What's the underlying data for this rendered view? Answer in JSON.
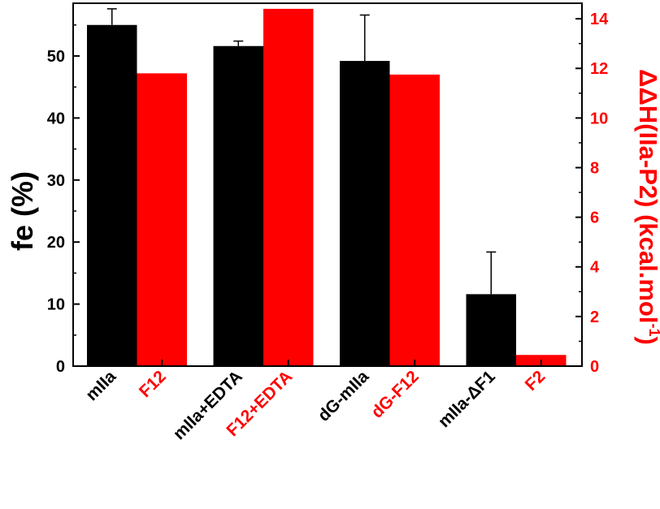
{
  "chart_data": {
    "type": "bar",
    "categories": [
      {
        "black_label": "mIIa",
        "red_label": "F12"
      },
      {
        "black_label": "mIIa+EDTA",
        "red_label": "F12+EDTA"
      },
      {
        "black_label": "dG-mIIa",
        "red_label": "dG-F12"
      },
      {
        "black_label": "mIIa-ΔF1",
        "red_label": "F2"
      }
    ],
    "series": [
      {
        "axis": "left",
        "color": "#000000",
        "values": [
          55.0,
          51.6,
          49.2,
          11.6
        ],
        "error": [
          2.6,
          0.8,
          7.4,
          6.8
        ]
      },
      {
        "axis": "right",
        "color": "#ff0000",
        "values": [
          11.8,
          14.4,
          11.75,
          0.45
        ]
      }
    ],
    "left_axis": {
      "label": "fe (%)",
      "ylim": [
        0,
        58.5
      ],
      "ticks": [
        "0",
        "10",
        "20",
        "30",
        "40",
        "50"
      ],
      "tick_values": [
        0,
        10,
        20,
        30,
        40,
        50
      ],
      "color": "#000000"
    },
    "right_axis": {
      "label_main": "ΔΔH(IIa-P2) (kcal.mol",
      "label_sup": "-1",
      "label_end": ")",
      "ylim": [
        0,
        14.625
      ],
      "ticks": [
        "0",
        "2",
        "4",
        "6",
        "8",
        "10",
        "12",
        "14"
      ],
      "tick_values": [
        0,
        2,
        4,
        6,
        8,
        10,
        12,
        14
      ],
      "color": "#ff0000"
    },
    "grid": false,
    "legend": "none"
  }
}
